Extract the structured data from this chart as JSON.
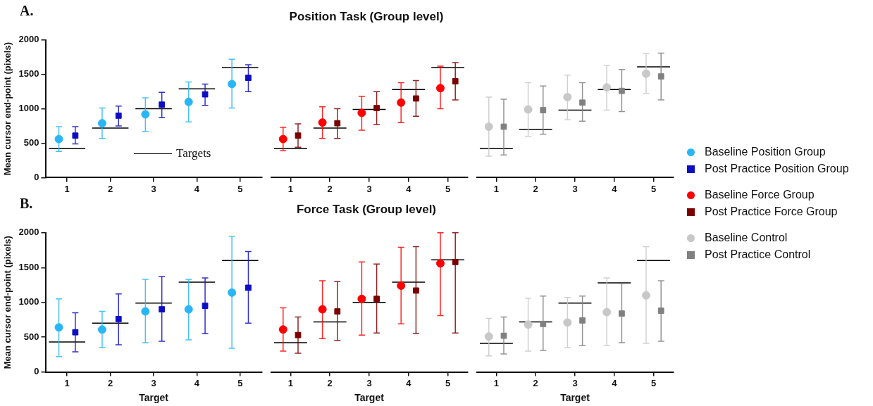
{
  "chart_data": [
    {
      "type": "scatter",
      "annotations": [
        "A.",
        "Targets"
      ],
      "ylabel": "Mean cursor end-point (pixels)",
      "categories": [
        "1",
        "2",
        "3",
        "4",
        "5"
      ],
      "ylim": [
        0,
        2000
      ],
      "yticks": [
        0,
        500,
        1000,
        1500,
        2000
      ],
      "legend": "right",
      "series": [
        {
          "name": "Baseline Position Group",
          "type": "scatter",
          "marker": "circle",
          "color": "#29b6f6",
          "values": [
            560,
            790,
            920,
            1100,
            1360
          ],
          "errors": [
            [
              380,
              740
            ],
            [
              570,
              1010
            ],
            [
              670,
              1160
            ],
            [
              810,
              1390
            ],
            [
              1010,
              1720
            ]
          ]
        },
        {
          "name": "Post Practice Position Group",
          "type": "scatter",
          "marker": "square",
          "color": "#0d0dc4",
          "values": [
            610,
            900,
            1060,
            1210,
            1450
          ],
          "errors": [
            [
              490,
              740
            ],
            [
              750,
              1040
            ],
            [
              870,
              1240
            ],
            [
              1050,
              1360
            ],
            [
              1250,
              1640
            ]
          ]
        }
      ],
      "ref_lines": [
        {
          "axis": "y",
          "value": 420,
          "color": "#000000"
        },
        {
          "axis": "y",
          "value": 720,
          "color": "#000000"
        },
        {
          "axis": "y",
          "value": 1000,
          "color": "#000000"
        },
        {
          "axis": "y",
          "value": 1290,
          "color": "#000000"
        },
        {
          "axis": "y",
          "value": 1600,
          "color": "#000000"
        }
      ]
    },
    {
      "type": "scatter",
      "title": "Position Task (Group level)",
      "categories": [
        "1",
        "2",
        "3",
        "4",
        "5"
      ],
      "ylim": [
        0,
        2000
      ],
      "yticks": [
        0,
        500,
        1000,
        1500,
        2000
      ],
      "tick_labels": "x",
      "legend": "right",
      "series": [
        {
          "name": "Baseline Force Group",
          "type": "scatter",
          "marker": "circle",
          "color": "#ff0000",
          "values": [
            560,
            800,
            940,
            1090,
            1300
          ],
          "errors": [
            [
              390,
              730
            ],
            [
              570,
              1030
            ],
            [
              690,
              1180
            ],
            [
              800,
              1380
            ],
            [
              1000,
              1620
            ]
          ]
        },
        {
          "name": "Post Practice Force Group",
          "type": "scatter",
          "marker": "square",
          "color": "#7b0000",
          "values": [
            610,
            790,
            1010,
            1150,
            1400
          ],
          "errors": [
            [
              440,
              780
            ],
            [
              570,
              1000
            ],
            [
              770,
              1250
            ],
            [
              890,
              1410
            ],
            [
              1130,
              1670
            ]
          ]
        }
      ],
      "ref_lines": [
        {
          "axis": "y",
          "value": 420,
          "color": "#000000"
        },
        {
          "axis": "y",
          "value": 720,
          "color": "#000000"
        },
        {
          "axis": "y",
          "value": 990,
          "color": "#000000"
        },
        {
          "axis": "y",
          "value": 1280,
          "color": "#000000"
        },
        {
          "axis": "y",
          "value": 1600,
          "color": "#000000"
        }
      ]
    },
    {
      "type": "scatter",
      "categories": [
        "1",
        "2",
        "3",
        "4",
        "5"
      ],
      "ylim": [
        0,
        2000
      ],
      "yticks": [
        0,
        500,
        1000,
        1500,
        2000
      ],
      "tick_labels": "x",
      "legend": "right",
      "series": [
        {
          "name": "Baseline Control",
          "type": "scatter",
          "marker": "circle",
          "color": "#c8c8c8",
          "values": [
            740,
            990,
            1170,
            1310,
            1510
          ],
          "errors": [
            [
              310,
              1170
            ],
            [
              600,
              1380
            ],
            [
              840,
              1490
            ],
            [
              980,
              1630
            ],
            [
              1220,
              1800
            ]
          ]
        },
        {
          "name": "Post Practice Control",
          "type": "scatter",
          "marker": "square",
          "color": "#808080",
          "values": [
            740,
            980,
            1090,
            1260,
            1470
          ],
          "errors": [
            [
              330,
              1140
            ],
            [
              630,
              1330
            ],
            [
              820,
              1380
            ],
            [
              960,
              1570
            ],
            [
              1130,
              1810
            ]
          ]
        }
      ],
      "ref_lines": [
        {
          "axis": "y",
          "value": 420,
          "color": "#000000"
        },
        {
          "axis": "y",
          "value": 700,
          "color": "#000000"
        },
        {
          "axis": "y",
          "value": 980,
          "color": "#000000"
        },
        {
          "axis": "y",
          "value": 1280,
          "color": "#000000"
        },
        {
          "axis": "y",
          "value": 1610,
          "color": "#000000"
        }
      ]
    },
    {
      "type": "scatter",
      "annotations": [
        "B."
      ],
      "ylabel": "Mean cursor end-point (pixels)",
      "xlabel": "Target",
      "categories": [
        "1",
        "2",
        "3",
        "4",
        "5"
      ],
      "ylim": [
        0,
        2000
      ],
      "yticks": [
        0,
        500,
        1000,
        1500,
        2000
      ],
      "series": [
        {
          "type": "scatter",
          "marker": "circle",
          "color": "#29b6f6",
          "values": [
            640,
            610,
            870,
            900,
            1140
          ],
          "errors": [
            [
              220,
              1050
            ],
            [
              350,
              870
            ],
            [
              420,
              1330
            ],
            [
              460,
              1330
            ],
            [
              340,
              1950
            ]
          ]
        },
        {
          "type": "scatter",
          "marker": "square",
          "color": "#0d0dc4",
          "values": [
            570,
            760,
            900,
            950,
            1210
          ],
          "errors": [
            [
              290,
              850
            ],
            [
              390,
              1120
            ],
            [
              440,
              1370
            ],
            [
              550,
              1350
            ],
            [
              700,
              1730
            ]
          ]
        }
      ],
      "ref_lines": [
        {
          "axis": "y",
          "value": 430,
          "color": "#000000"
        },
        {
          "axis": "y",
          "value": 700,
          "color": "#000000"
        },
        {
          "axis": "y",
          "value": 990,
          "color": "#000000"
        },
        {
          "axis": "y",
          "value": 1290,
          "color": "#000000"
        },
        {
          "axis": "y",
          "value": 1600,
          "color": "#000000"
        }
      ]
    },
    {
      "type": "scatter",
      "title": "Force Task (Group level)",
      "xlabel": "Target",
      "categories": [
        "1",
        "2",
        "3",
        "4",
        "5"
      ],
      "ylim": [
        0,
        2000
      ],
      "yticks": [
        0,
        500,
        1000,
        1500,
        2000
      ],
      "tick_labels": "x",
      "series": [
        {
          "type": "scatter",
          "marker": "circle",
          "color": "#ff0000",
          "values": [
            610,
            900,
            1050,
            1240,
            1560
          ],
          "errors": [
            [
              300,
              920
            ],
            [
              480,
              1310
            ],
            [
              530,
              1580
            ],
            [
              690,
              1790
            ],
            [
              810,
              2000
            ]
          ]
        },
        {
          "type": "scatter",
          "marker": "square",
          "color": "#7b0000",
          "values": [
            530,
            870,
            1050,
            1170,
            1580
          ],
          "errors": [
            [
              270,
              790
            ],
            [
              450,
              1300
            ],
            [
              560,
              1550
            ],
            [
              550,
              1800
            ],
            [
              560,
              2000
            ]
          ]
        }
      ],
      "ref_lines": [
        {
          "axis": "y",
          "value": 420,
          "color": "#000000"
        },
        {
          "axis": "y",
          "value": 720,
          "color": "#000000"
        },
        {
          "axis": "y",
          "value": 1000,
          "color": "#000000"
        },
        {
          "axis": "y",
          "value": 1290,
          "color": "#000000"
        },
        {
          "axis": "y",
          "value": 1610,
          "color": "#000000"
        }
      ]
    },
    {
      "type": "scatter",
      "xlabel": "Target",
      "categories": [
        "1",
        "2",
        "3",
        "4",
        "5"
      ],
      "ylim": [
        0,
        2000
      ],
      "yticks": [
        0,
        500,
        1000,
        1500,
        2000
      ],
      "tick_labels": "x",
      "series": [
        {
          "type": "scatter",
          "marker": "circle",
          "color": "#c8c8c8",
          "values": [
            510,
            680,
            710,
            860,
            1100
          ],
          "errors": [
            [
              230,
              770
            ],
            [
              300,
              1060
            ],
            [
              350,
              1070
            ],
            [
              380,
              1350
            ],
            [
              410,
              1800
            ]
          ]
        },
        {
          "type": "scatter",
          "marker": "square",
          "color": "#808080",
          "values": [
            520,
            690,
            740,
            840,
            880
          ],
          "errors": [
            [
              260,
              790
            ],
            [
              310,
              1090
            ],
            [
              380,
              1090
            ],
            [
              420,
              1270
            ],
            [
              440,
              1310
            ]
          ]
        }
      ],
      "ref_lines": [
        {
          "axis": "y",
          "value": 410,
          "color": "#000000"
        },
        {
          "axis": "y",
          "value": 720,
          "color": "#000000"
        },
        {
          "axis": "y",
          "value": 990,
          "color": "#000000"
        },
        {
          "axis": "y",
          "value": 1280,
          "color": "#000000"
        },
        {
          "axis": "y",
          "value": 1600,
          "color": "#000000"
        }
      ]
    }
  ]
}
